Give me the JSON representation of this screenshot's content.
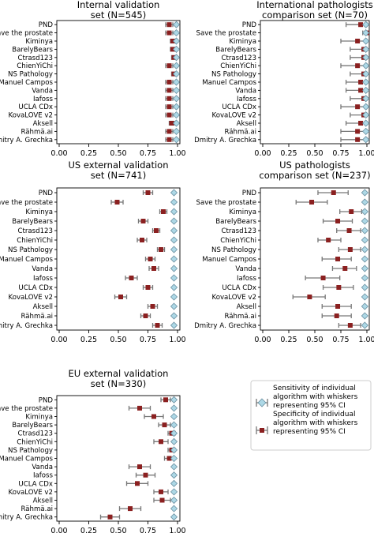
{
  "algorithms": [
    "PND",
    "Save the prostate",
    "Kiminya",
    "BarelyBears",
    "Ctrasd123",
    "ChienYiChi",
    "NS Pathology",
    "Manuel Campos",
    "Vanda",
    "Iafoss",
    "UCLA CDx",
    "KovaLOVE v2",
    "Aksell",
    "Rähmä.ai",
    "Dmitry A. Grechka"
  ],
  "colors": {
    "sensitivity": "#add8e6",
    "specificity": "#8b2020",
    "whisker": "#777777"
  },
  "legend": {
    "sensitivity_label": "Sensitivity of individual algorithm with whiskers representing 95% CI",
    "specificity_label": "Specificity of individual algorithm with whiskers representing 95% CI"
  },
  "chart_data": [
    {
      "type": "scatter",
      "title": "Internal validation set (N=545)",
      "xlim": [
        0,
        1
      ],
      "xticks": [
        "0.00",
        "0.25",
        "0.50",
        "0.75",
        "1.00"
      ],
      "series": [
        {
          "name": "Sensitivity",
          "values": [
            0.99,
            0.99,
            0.99,
            0.99,
            0.99,
            0.99,
            0.99,
            0.99,
            0.99,
            0.99,
            0.99,
            0.99,
            0.99,
            0.99,
            0.99
          ],
          "ci": [
            [
              0.98,
              1.0
            ],
            [
              0.98,
              1.0
            ],
            [
              0.98,
              1.0
            ],
            [
              0.98,
              1.0
            ],
            [
              0.98,
              1.0
            ],
            [
              0.98,
              1.0
            ],
            [
              0.98,
              1.0
            ],
            [
              0.98,
              1.0
            ],
            [
              0.98,
              1.0
            ],
            [
              0.98,
              1.0
            ],
            [
              0.98,
              1.0
            ],
            [
              0.98,
              1.0
            ],
            [
              0.98,
              1.0
            ],
            [
              0.98,
              1.0
            ],
            [
              0.98,
              1.0
            ]
          ]
        },
        {
          "name": "Specificity",
          "values": [
            0.93,
            0.93,
            0.96,
            0.96,
            0.97,
            0.93,
            0.97,
            0.93,
            0.93,
            0.93,
            0.93,
            0.93,
            0.95,
            0.93,
            0.93
          ],
          "ci": [
            [
              0.9,
              0.96
            ],
            [
              0.9,
              0.96
            ],
            [
              0.94,
              0.98
            ],
            [
              0.94,
              0.98
            ],
            [
              0.95,
              0.99
            ],
            [
              0.9,
              0.96
            ],
            [
              0.95,
              0.99
            ],
            [
              0.9,
              0.96
            ],
            [
              0.9,
              0.96
            ],
            [
              0.9,
              0.96
            ],
            [
              0.9,
              0.96
            ],
            [
              0.9,
              0.96
            ],
            [
              0.93,
              0.97
            ],
            [
              0.9,
              0.96
            ],
            [
              0.9,
              0.96
            ]
          ]
        }
      ]
    },
    {
      "type": "scatter",
      "title": "International pathologists comparison set (N=70)",
      "xlim": [
        0,
        1
      ],
      "xticks": [
        "0.00",
        "0.25",
        "0.50",
        "0.75",
        "1.00"
      ],
      "series": [
        {
          "name": "Sensitivity",
          "values": [
            0.99,
            0.99,
            0.99,
            0.99,
            0.99,
            0.99,
            0.99,
            0.99,
            0.99,
            0.99,
            0.99,
            0.99,
            0.99,
            0.99,
            0.99
          ],
          "ci": [
            [
              0.96,
              1.0
            ],
            [
              0.96,
              1.0
            ],
            [
              0.96,
              1.0
            ],
            [
              0.96,
              1.0
            ],
            [
              0.96,
              1.0
            ],
            [
              0.96,
              1.0
            ],
            [
              0.96,
              1.0
            ],
            [
              0.96,
              1.0
            ],
            [
              0.96,
              1.0
            ],
            [
              0.96,
              1.0
            ],
            [
              0.96,
              1.0
            ],
            [
              0.96,
              1.0
            ],
            [
              0.96,
              1.0
            ],
            [
              0.96,
              1.0
            ],
            [
              0.96,
              1.0
            ]
          ]
        },
        {
          "name": "Specificity",
          "values": [
            0.94,
            1.0,
            0.91,
            0.97,
            0.97,
            0.91,
            0.97,
            0.94,
            0.94,
            0.97,
            0.91,
            0.97,
            0.94,
            0.91,
            0.91
          ],
          "ci": [
            [
              0.8,
              1.0
            ],
            [
              0.96,
              1.0
            ],
            [
              0.75,
              1.0
            ],
            [
              0.84,
              1.0
            ],
            [
              0.84,
              1.0
            ],
            [
              0.75,
              1.0
            ],
            [
              0.84,
              1.0
            ],
            [
              0.8,
              1.0
            ],
            [
              0.8,
              1.0
            ],
            [
              0.84,
              1.0
            ],
            [
              0.75,
              1.0
            ],
            [
              0.84,
              1.0
            ],
            [
              0.8,
              1.0
            ],
            [
              0.75,
              1.0
            ],
            [
              0.75,
              1.0
            ]
          ]
        }
      ]
    },
    {
      "type": "scatter",
      "title": "US external validation set (N=741)",
      "xlim": [
        0,
        1
      ],
      "xticks": [
        "0.00",
        "0.25",
        "0.50",
        "0.75",
        "1.00"
      ],
      "series": [
        {
          "name": "Sensitivity",
          "values": [
            0.97,
            0.97,
            0.97,
            0.97,
            0.97,
            0.97,
            0.97,
            0.97,
            0.97,
            0.97,
            0.97,
            0.97,
            0.97,
            0.97,
            0.97
          ],
          "ci": [
            [
              0.96,
              0.98
            ],
            [
              0.96,
              0.98
            ],
            [
              0.96,
              0.98
            ],
            [
              0.96,
              0.98
            ],
            [
              0.96,
              0.98
            ],
            [
              0.96,
              0.98
            ],
            [
              0.96,
              0.98
            ],
            [
              0.96,
              0.98
            ],
            [
              0.96,
              0.98
            ],
            [
              0.96,
              0.98
            ],
            [
              0.96,
              0.98
            ],
            [
              0.96,
              0.98
            ],
            [
              0.96,
              0.98
            ],
            [
              0.96,
              0.98
            ],
            [
              0.96,
              0.98
            ]
          ]
        },
        {
          "name": "Specificity",
          "values": [
            0.75,
            0.49,
            0.88,
            0.71,
            0.82,
            0.7,
            0.86,
            0.77,
            0.8,
            0.61,
            0.75,
            0.52,
            0.79,
            0.73,
            0.83
          ],
          "ci": [
            [
              0.71,
              0.79
            ],
            [
              0.44,
              0.54
            ],
            [
              0.85,
              0.91
            ],
            [
              0.67,
              0.75
            ],
            [
              0.79,
              0.85
            ],
            [
              0.66,
              0.74
            ],
            [
              0.83,
              0.89
            ],
            [
              0.73,
              0.81
            ],
            [
              0.76,
              0.84
            ],
            [
              0.56,
              0.66
            ],
            [
              0.71,
              0.79
            ],
            [
              0.47,
              0.57
            ],
            [
              0.75,
              0.83
            ],
            [
              0.69,
              0.77
            ],
            [
              0.79,
              0.87
            ]
          ]
        }
      ]
    },
    {
      "type": "scatter",
      "title": "US pathologists comparison set (N=237)",
      "xlim": [
        0,
        1
      ],
      "xticks": [
        "0.00",
        "0.25",
        "0.50",
        "0.75",
        "1.00"
      ],
      "series": [
        {
          "name": "Sensitivity",
          "values": [
            0.98,
            0.98,
            0.98,
            0.98,
            0.98,
            0.98,
            0.98,
            0.98,
            0.98,
            0.98,
            0.98,
            0.98,
            0.98,
            0.98,
            0.98
          ],
          "ci": [
            [
              0.96,
              1.0
            ],
            [
              0.96,
              1.0
            ],
            [
              0.96,
              1.0
            ],
            [
              0.96,
              1.0
            ],
            [
              0.96,
              1.0
            ],
            [
              0.96,
              1.0
            ],
            [
              0.96,
              1.0
            ],
            [
              0.96,
              1.0
            ],
            [
              0.96,
              1.0
            ],
            [
              0.96,
              1.0
            ],
            [
              0.96,
              1.0
            ],
            [
              0.96,
              1.0
            ],
            [
              0.96,
              1.0
            ],
            [
              0.96,
              1.0
            ],
            [
              0.96,
              1.0
            ]
          ]
        },
        {
          "name": "Specificity",
          "values": [
            0.68,
            0.47,
            0.85,
            0.72,
            0.83,
            0.63,
            0.84,
            0.72,
            0.79,
            0.58,
            0.73,
            0.45,
            0.72,
            0.71,
            0.84
          ],
          "ci": [
            [
              0.53,
              0.82
            ],
            [
              0.32,
              0.62
            ],
            [
              0.74,
              0.95
            ],
            [
              0.58,
              0.86
            ],
            [
              0.71,
              0.94
            ],
            [
              0.53,
              0.75
            ],
            [
              0.73,
              0.94
            ],
            [
              0.57,
              0.85
            ],
            [
              0.67,
              0.9
            ],
            [
              0.41,
              0.74
            ],
            [
              0.58,
              0.87
            ],
            [
              0.29,
              0.6
            ],
            [
              0.57,
              0.85
            ],
            [
              0.57,
              0.85
            ],
            [
              0.73,
              0.94
            ]
          ]
        }
      ]
    },
    {
      "type": "scatter",
      "title": "EU external validation set (N=330)",
      "xlim": [
        0,
        1
      ],
      "xticks": [
        "0.00",
        "0.25",
        "0.50",
        "0.75",
        "1.00"
      ],
      "series": [
        {
          "name": "Sensitivity",
          "values": [
            0.97,
            0.97,
            0.97,
            0.97,
            0.97,
            0.97,
            0.97,
            0.97,
            0.97,
            0.97,
            0.97,
            0.97,
            0.97,
            0.97,
            0.97
          ],
          "ci": [
            [
              0.96,
              0.99
            ],
            [
              0.96,
              0.99
            ],
            [
              0.96,
              0.99
            ],
            [
              0.96,
              0.99
            ],
            [
              0.96,
              0.99
            ],
            [
              0.96,
              0.99
            ],
            [
              0.96,
              0.99
            ],
            [
              0.96,
              0.99
            ],
            [
              0.96,
              0.99
            ],
            [
              0.96,
              0.99
            ],
            [
              0.96,
              0.99
            ],
            [
              0.96,
              0.99
            ],
            [
              0.96,
              0.99
            ],
            [
              0.96,
              0.99
            ],
            [
              0.96,
              0.99
            ]
          ]
        },
        {
          "name": "Specificity",
          "values": [
            0.9,
            0.68,
            0.8,
            0.89,
            0.95,
            0.86,
            0.95,
            0.93,
            0.68,
            0.73,
            0.66,
            0.86,
            0.87,
            0.6,
            0.43
          ],
          "ci": [
            [
              0.86,
              0.94
            ],
            [
              0.59,
              0.77
            ],
            [
              0.72,
              0.88
            ],
            [
              0.84,
              0.94
            ],
            [
              0.92,
              0.98
            ],
            [
              0.8,
              0.92
            ],
            [
              0.92,
              0.98
            ],
            [
              0.89,
              0.97
            ],
            [
              0.59,
              0.77
            ],
            [
              0.65,
              0.81
            ],
            [
              0.57,
              0.75
            ],
            [
              0.8,
              0.92
            ],
            [
              0.8,
              0.94
            ],
            [
              0.51,
              0.69
            ],
            [
              0.35,
              0.51
            ]
          ]
        }
      ]
    }
  ]
}
